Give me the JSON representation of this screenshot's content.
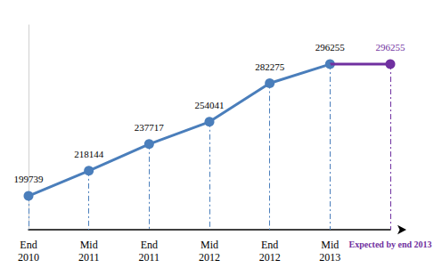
{
  "chart_data": {
    "type": "line",
    "categories": [
      "End 2010",
      "Mid 2011",
      "End 2011",
      "Mid 2012",
      "End 2012",
      "Mid 2013",
      "Expected by end 2013"
    ],
    "series": [
      {
        "color": "#4a7ebb",
        "marker": "circle",
        "line_style": "solid",
        "values": [
          199739,
          218144,
          237717,
          254041,
          282275,
          296255,
          null
        ]
      },
      {
        "color": "#7030a0",
        "marker": "circle",
        "line_style": "solid",
        "values": [
          null,
          null,
          null,
          null,
          null,
          296255,
          296255
        ]
      }
    ],
    "ylim": [
      175000,
      325000
    ],
    "grid": false,
    "data_labels": true,
    "tick_labels": "x"
  }
}
